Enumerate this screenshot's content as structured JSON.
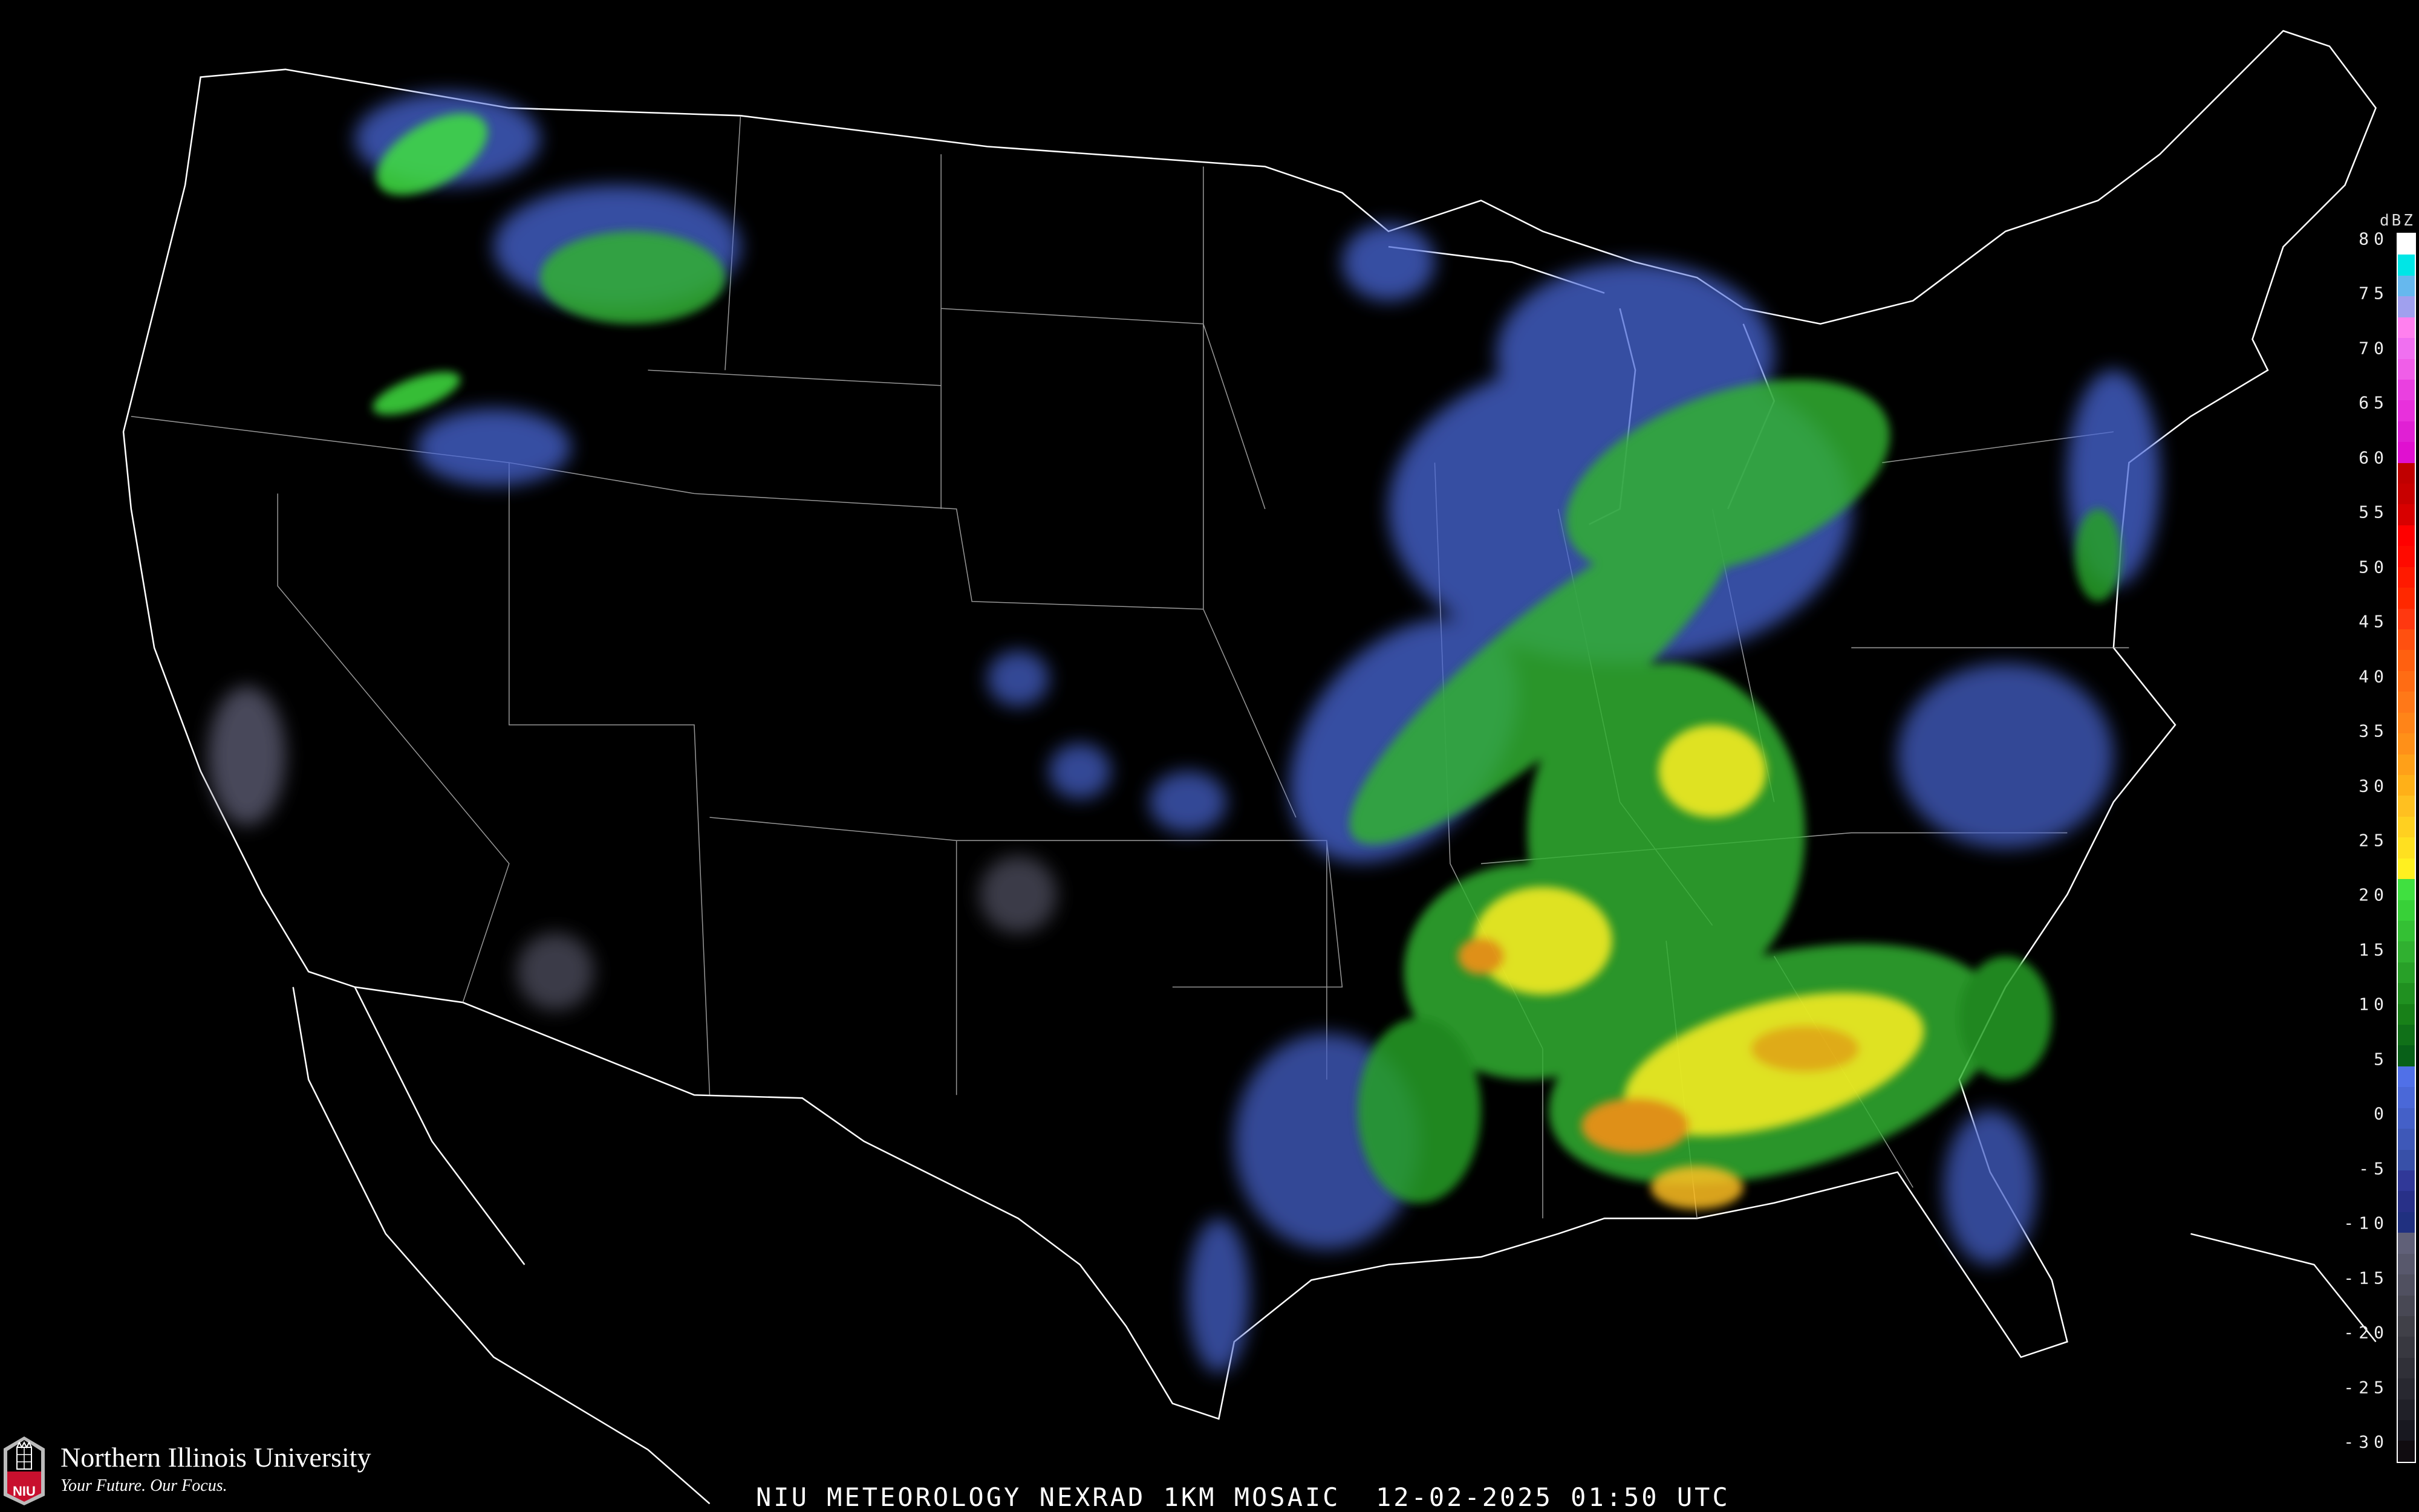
{
  "title": "NIU METEOROLOGY NEXRAD 1KM MOSAIC  12-02-2025 01:50 UTC",
  "logo": {
    "name": "Northern Illinois University",
    "tagline": "Your Future. Our Focus.",
    "abbr": "NIU",
    "brand_color": "#c8102e"
  },
  "legend": {
    "unit": "dBZ",
    "labels": [
      "80",
      "75",
      "70",
      "65",
      "60",
      "55",
      "50",
      "45",
      "40",
      "35",
      "30",
      "25",
      "20",
      "15",
      "10",
      "5",
      "0",
      "-5",
      "-10",
      "-15",
      "-20",
      "-25",
      "-30"
    ],
    "colors": [
      "#ffffff",
      "#00e6e6",
      "#66b8ee",
      "#a0a0ee",
      "#ff80ee",
      "#f070f0",
      "#f05ee8",
      "#ea40e0",
      "#e830dc",
      "#e020d4",
      "#e010d0",
      "#c00000",
      "#c80000",
      "#d80000",
      "#ff0000",
      "#ff0a00",
      "#ff1a00",
      "#ff2800",
      "#ff3810",
      "#ff5010",
      "#ff6010",
      "#ff6c14",
      "#ff7818",
      "#ff8418",
      "#ff9018",
      "#ffa018",
      "#ffb018",
      "#ffc020",
      "#ffd020",
      "#ffe020",
      "#fff020",
      "#40e040",
      "#38d038",
      "#34c034",
      "#30b030",
      "#28a028",
      "#209020",
      "#188018",
      "#107018",
      "#086018",
      "#5070e8",
      "#4a68d8",
      "#4460c8",
      "#3e58b8",
      "#3850a8",
      "#303898",
      "#283088",
      "#203080",
      "#606078",
      "#58586c",
      "#505060",
      "#484854",
      "#404048",
      "#383840",
      "#303038",
      "#282830",
      "#202028",
      "#181820",
      "#100c10"
    ]
  }
}
